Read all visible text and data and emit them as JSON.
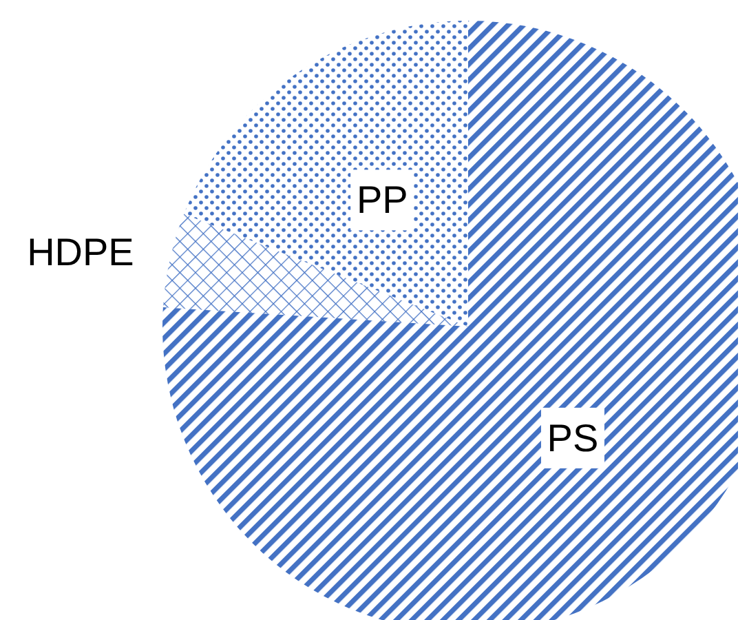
{
  "chart_data": {
    "type": "pie",
    "categories": [
      "PS",
      "HDPE",
      "PP"
    ],
    "values": [
      76,
      5,
      19
    ],
    "colors": [
      "#4472c4",
      "#4472c4",
      "#4472c4"
    ]
  }
}
